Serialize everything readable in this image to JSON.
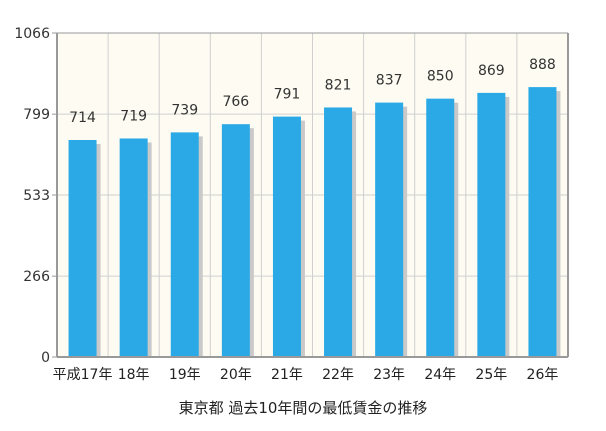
{
  "chart_data": {
    "type": "bar",
    "categories": [
      "平成17年",
      "18年",
      "19年",
      "20年",
      "21年",
      "22年",
      "23年",
      "24年",
      "25年",
      "26年"
    ],
    "values": [
      714,
      719,
      739,
      766,
      791,
      821,
      837,
      850,
      869,
      888
    ],
    "data_labels": [
      "714",
      "719",
      "739",
      "766",
      "791",
      "821",
      "837",
      "850",
      "869",
      "888"
    ],
    "title": "東京都 過去10年間の最低賃金の推移",
    "xlabel": "",
    "ylabel": "",
    "ylim": [
      0,
      1066
    ],
    "yticks": [
      0,
      266,
      533,
      799,
      1066
    ],
    "ytick_labels": [
      "0",
      "266",
      "533",
      "799",
      "1066"
    ],
    "grid": true,
    "legend": "none",
    "colors": {
      "bar": "#2aa9e6",
      "bar_shadow": "#c9c9c9",
      "plot_background": "#fefcf2",
      "grid": "#cfcfcf",
      "axis": "#999999"
    }
  }
}
